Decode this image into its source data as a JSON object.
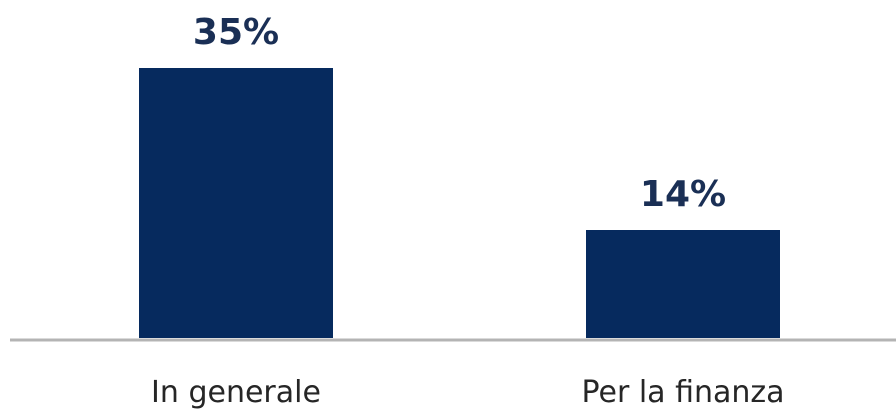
{
  "chart_data": {
    "type": "bar",
    "categories": [
      "In generale",
      "Per la finanza"
    ],
    "values": [
      35,
      14
    ],
    "value_labels": [
      "35%",
      "14%"
    ],
    "unit": "%",
    "ylim": [
      0,
      40
    ],
    "grid": false,
    "legend": "none"
  },
  "colors": {
    "bar": "#062a5e",
    "label": "#1a2f55",
    "axis": "#b4b4b4",
    "category_text": "#262626"
  }
}
